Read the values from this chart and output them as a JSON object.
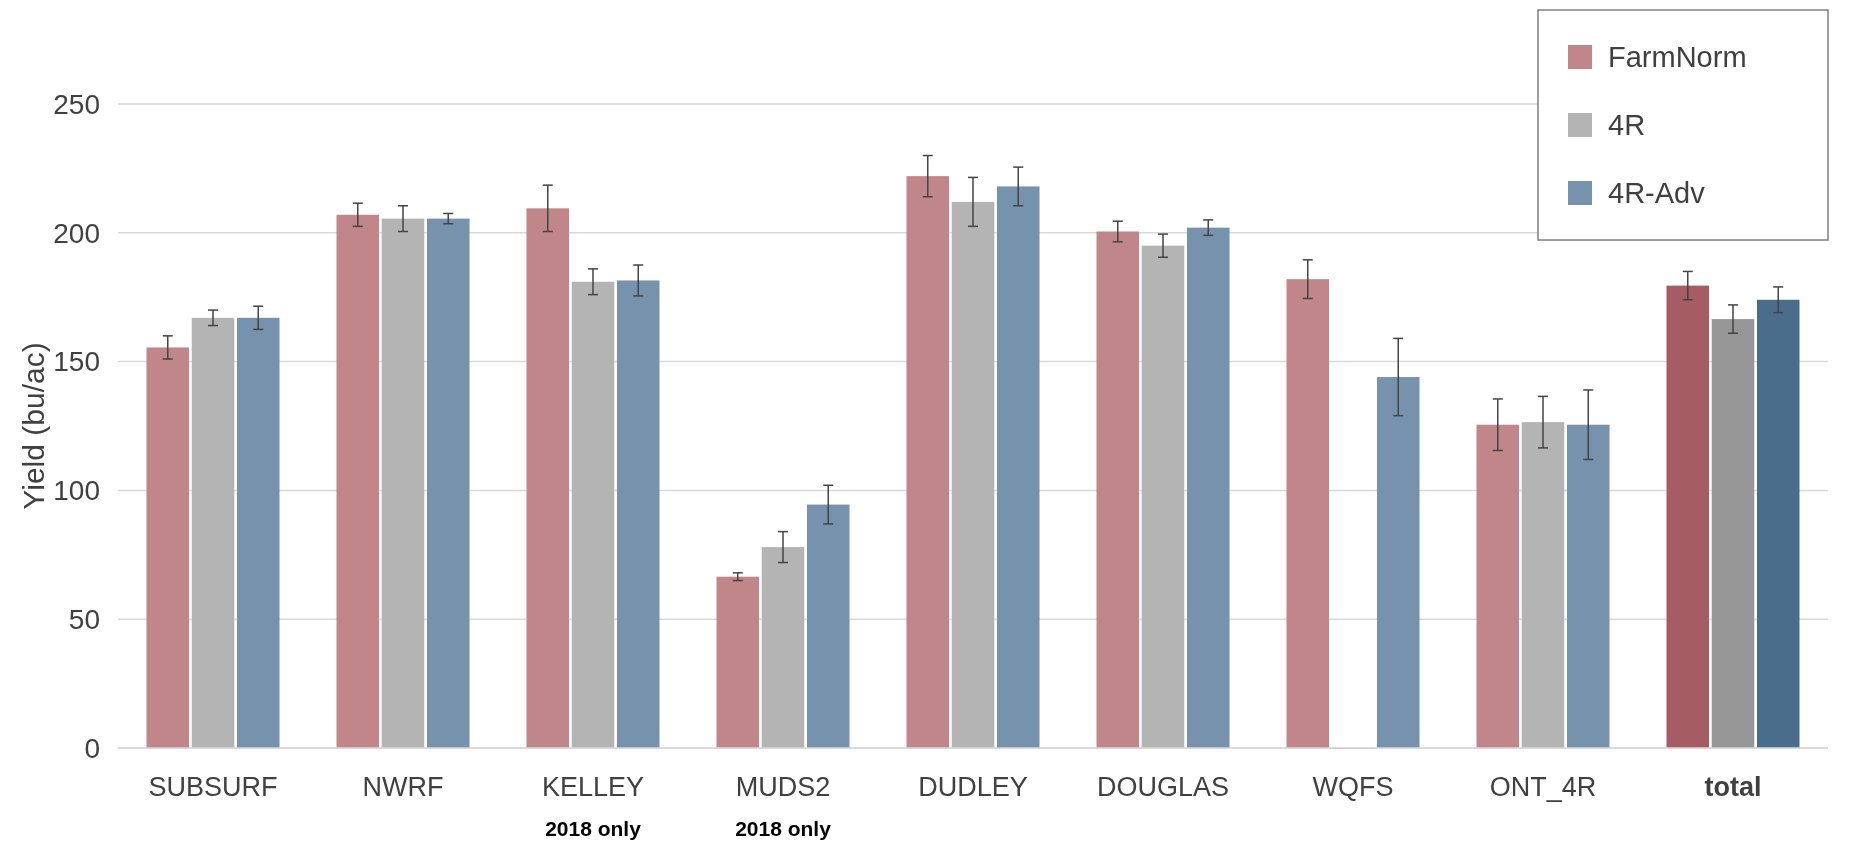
{
  "chart_data": {
    "type": "bar",
    "ylabel": "Yield (bu/ac)",
    "categories": [
      "SUBSURF",
      "NWRF",
      "KELLEY",
      "MUDS2",
      "DUDLEY",
      "DOUGLAS",
      "WQFS",
      "ONT_4R",
      "total"
    ],
    "series": [
      {
        "name": "FarmNorm",
        "color": "#c0868a",
        "colors": [
          "#c0868a",
          "#c0868a",
          "#c0868a",
          "#c0868a",
          "#c0868a",
          "#c0868a",
          "#c0868a",
          "#c0868a",
          "#a65c63"
        ],
        "values": [
          155.5,
          207,
          209.5,
          66.5,
          222,
          200.5,
          182,
          125.5,
          179.5
        ],
        "errors": [
          4.5,
          4.5,
          9,
          1.5,
          8,
          4,
          7.5,
          10,
          5.5
        ]
      },
      {
        "name": "4R",
        "color": "#b4b4b4",
        "colors": [
          "#b4b4b4",
          "#b4b4b4",
          "#b4b4b4",
          "#b4b4b4",
          "#b4b4b4",
          "#b4b4b4",
          "#b4b4b4",
          "#b4b4b4",
          "#969696"
        ],
        "values": [
          167,
          205.5,
          181,
          78,
          212,
          195,
          0,
          126.5,
          166.5
        ],
        "errors": [
          3,
          5,
          5,
          6,
          9.5,
          4.5,
          null,
          10,
          5.5
        ]
      },
      {
        "name": "4R-Adv",
        "color": "#7692ad",
        "colors": [
          "#7692ad",
          "#7692ad",
          "#7692ad",
          "#7692ad",
          "#7692ad",
          "#7692ad",
          "#7692ad",
          "#7692ad",
          "#4a6d8c"
        ],
        "values": [
          167,
          205.5,
          181.5,
          94.5,
          218,
          202,
          144,
          125.5,
          174
        ],
        "errors": [
          4.5,
          2,
          6,
          7.5,
          7.5,
          3,
          15,
          13.5,
          5
        ]
      }
    ],
    "ylim": [
      0,
      250
    ],
    "yticks": [
      0,
      50,
      100,
      150,
      200,
      250
    ],
    "grid": "y",
    "legend": "top right",
    "annotations": [
      "2018 only",
      "2018 only"
    ]
  }
}
